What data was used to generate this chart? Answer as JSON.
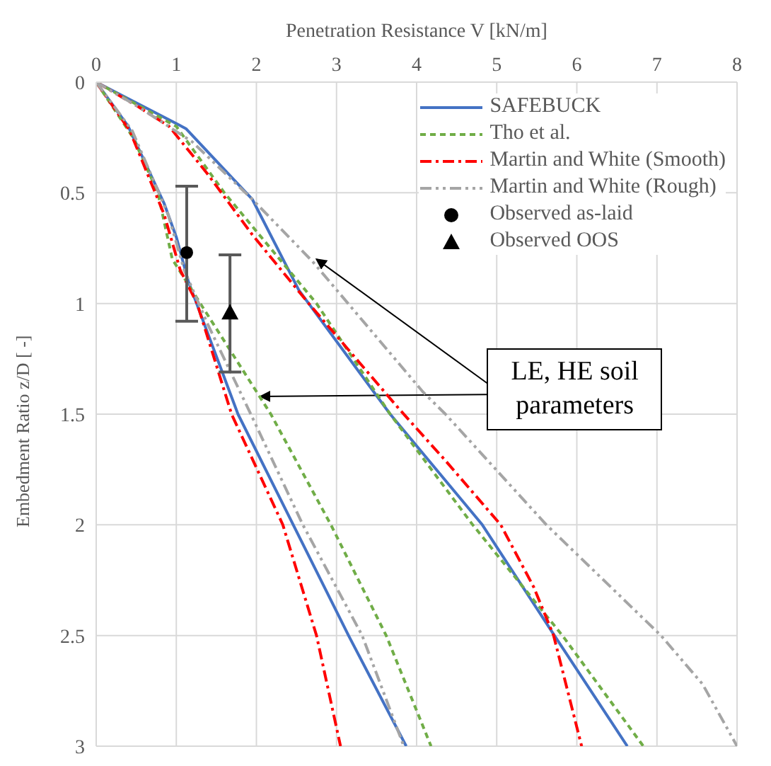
{
  "chart_data": {
    "type": "line",
    "xlabel": "Penetration Resistance V [kN/m]",
    "ylabel": "Embedment Ratio z/D [ -]",
    "xlim": [
      0,
      8
    ],
    "xticks": [
      0,
      1,
      2,
      3,
      4,
      5,
      6,
      7,
      8
    ],
    "ylim": [
      3,
      0
    ],
    "yticks": [
      0,
      0.5,
      1,
      1.5,
      2,
      2.5,
      3
    ],
    "grid": true,
    "legend": "top right",
    "annotations": [
      {
        "text": "LE, HE soil parameters",
        "x": 2.75,
        "y": 0.8
      }
    ],
    "series": [
      {
        "name": "SAFEBUCK",
        "color": "#4472c4",
        "line_style": "solid",
        "marker": "none",
        "x": [
          0,
          0.4,
          0.85,
          1.0,
          1.15,
          1.77,
          2.46,
          3.15,
          3.87
        ],
        "values": [
          0,
          0.2,
          0.55,
          0.7,
          0.9,
          1.5,
          2,
          2.5,
          3
        ]
      },
      {
        "color": "#4472c4",
        "line_style": "solid",
        "marker": "none",
        "x": [
          0,
          1.12,
          1.95,
          2.53,
          3.67,
          4.82,
          5.72,
          6.63
        ],
        "values": [
          0,
          0.21,
          0.53,
          0.94,
          1.5,
          2,
          2.5,
          3
        ]
      },
      {
        "name": "Tho et al.",
        "color": "#70ad47",
        "line_style": "dashed",
        "marker": "none",
        "x": [
          0,
          0.46,
          0.77,
          0.95,
          1.3,
          2.18,
          2.93,
          3.62,
          4.18
        ],
        "values": [
          0,
          0.25,
          0.5,
          0.8,
          1.0,
          1.5,
          2,
          2.5,
          3
        ]
      },
      {
        "color": "#70ad47",
        "line_style": "dashed",
        "marker": "none",
        "x": [
          0,
          1.0,
          1.6,
          2.75,
          3.67,
          4.7,
          5.82,
          6.83
        ],
        "values": [
          0,
          0.2,
          0.5,
          1.0,
          1.5,
          2,
          2.5,
          3
        ]
      },
      {
        "name": "Martin and White (Smooth)",
        "color": "#ff0000",
        "line_style": "dashdot",
        "marker": "none",
        "x": [
          0,
          0.42,
          0.85,
          1.05,
          1.26,
          1.69,
          2.33,
          2.75,
          3.05
        ],
        "values": [
          0,
          0.22,
          0.6,
          0.85,
          1.0,
          1.5,
          2,
          2.5,
          3
        ]
      },
      {
        "color": "#ff0000",
        "line_style": "dashdot",
        "marker": "none",
        "x": [
          0,
          0.52,
          0.91,
          1.38,
          1.95,
          2.63,
          3.79,
          4.36,
          5.05,
          5.46,
          5.71,
          6.06
        ],
        "values": [
          0,
          0.11,
          0.2,
          0.41,
          0.69,
          0.99,
          1.48,
          1.71,
          2.0,
          2.28,
          2.5,
          3
        ]
      },
      {
        "name": "Martin and White (Rough)",
        "color": "#a5a5a5",
        "line_style": "dashdotdot",
        "marker": "none",
        "x": [
          0,
          0.45,
          0.9,
          1.1,
          1.4,
          1.93,
          2.58,
          3.32,
          3.84
        ],
        "values": [
          0,
          0.22,
          0.6,
          0.85,
          1.1,
          1.5,
          2,
          2.5,
          3
        ]
      },
      {
        "color": "#a5a5a5",
        "line_style": "dashdotdot",
        "marker": "none",
        "x": [
          0,
          0.52,
          1.2,
          1.95,
          2.7,
          4.08,
          4.36,
          5.62,
          7.05,
          7.57,
          8
        ],
        "values": [
          0,
          0.11,
          0.27,
          0.53,
          0.81,
          1.4,
          1.5,
          2.0,
          2.5,
          2.72,
          3
        ]
      },
      {
        "name": "Observed as-laid",
        "type": "scatter",
        "color": "#000000",
        "marker": "circle",
        "x": [
          1.13
        ],
        "values": [
          0.77
        ],
        "errors": [
          [
            0.47,
            1.08
          ]
        ]
      },
      {
        "name": "Observed OOS",
        "type": "scatter",
        "color": "#000000",
        "marker": "triangle",
        "x": [
          1.67
        ],
        "values": [
          1.04
        ],
        "errors": [
          [
            0.78,
            1.31
          ]
        ]
      }
    ]
  }
}
